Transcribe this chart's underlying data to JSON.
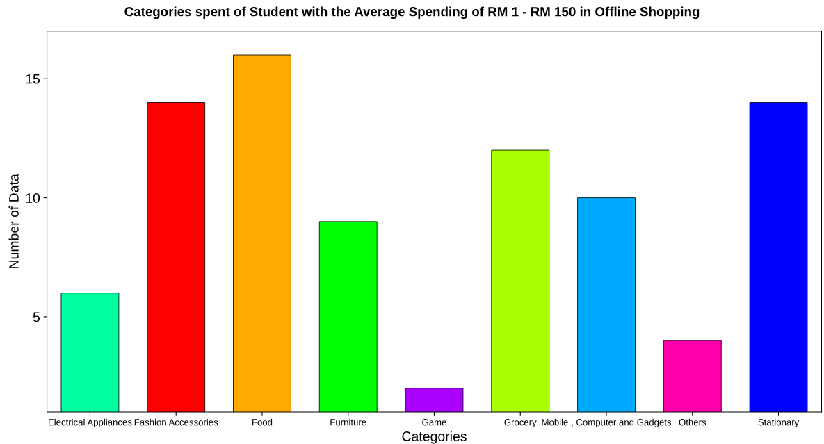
{
  "chart_data": {
    "type": "bar",
    "title": "Categories spent of Student with the Average Spending of RM 1 - RM 150 in Offline Shopping",
    "xlabel": "Categories",
    "ylabel": "Number of Data",
    "categories": [
      "Electrical Appliances",
      "Fashion Accessories",
      "Food",
      "Furniture",
      "Game",
      "Grocery",
      "Mobile , Computer and Gadgets",
      "Others",
      "Stationary"
    ],
    "values": [
      6,
      14,
      16,
      9,
      2,
      12,
      10,
      4,
      14
    ],
    "colors": [
      "#00ffa0",
      "#ff0000",
      "#ffaa00",
      "#00ff00",
      "#aa00ff",
      "#aaff00",
      "#00aaff",
      "#ff00aa",
      "#0000ff"
    ],
    "ylim": [
      1,
      17
    ],
    "yticks": [
      5,
      10,
      15
    ],
    "grid": false,
    "legend": false
  }
}
